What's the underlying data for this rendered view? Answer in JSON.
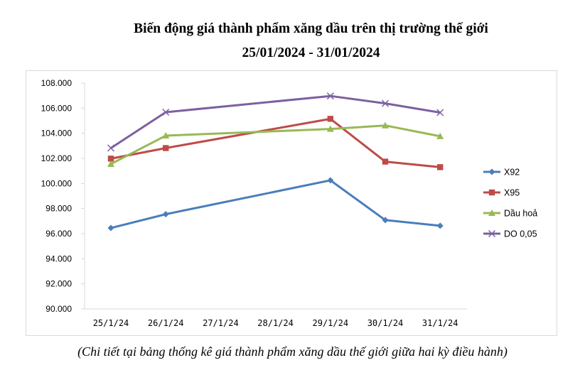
{
  "chart_data": {
    "type": "line",
    "title": "Biến động giá thành phẩm xăng dầu trên thị trường thế giới",
    "subtitle": "25/01/2024 - 31/01/2024",
    "caption": "(Chi tiết tại bảng thống kê giá thành phẩm xăng dầu thế giới giữa hai kỳ điều hành)",
    "categories": [
      "25/1/24",
      "26/1/24",
      "27/1/24",
      "28/1/24",
      "29/1/24",
      "30/1/24",
      "31/1/24"
    ],
    "ylim": [
      90000,
      108000
    ],
    "y_ticks": [
      {
        "value": 90000,
        "label": "90.000"
      },
      {
        "value": 92000,
        "label": "92.000"
      },
      {
        "value": 94000,
        "label": "94.000"
      },
      {
        "value": 96000,
        "label": "96.000"
      },
      {
        "value": 98000,
        "label": "98.000"
      },
      {
        "value": 100000,
        "label": "100.000"
      },
      {
        "value": 102000,
        "label": "102.000"
      },
      {
        "value": 104000,
        "label": "104.000"
      },
      {
        "value": 106000,
        "label": "106.000"
      },
      {
        "value": 108000,
        "label": "108.000"
      }
    ],
    "grid": false,
    "legend_position": "right",
    "series": [
      {
        "name": "X92",
        "color": "#4a7ebb",
        "marker": "diamond",
        "values": [
          96450,
          97550,
          null,
          null,
          100250,
          97080,
          96630
        ]
      },
      {
        "name": "X95",
        "color": "#be4b48",
        "marker": "square",
        "values": [
          101980,
          102820,
          null,
          null,
          105150,
          101740,
          101300
        ]
      },
      {
        "name": "Dầu hoả",
        "color": "#98b954",
        "marker": "triangle",
        "values": [
          101550,
          103810,
          null,
          null,
          104340,
          104620,
          103760
        ]
      },
      {
        "name": "DO 0,05",
        "color": "#7d60a0",
        "marker": "cross",
        "values": [
          102820,
          105680,
          null,
          null,
          106970,
          106380,
          105650
        ]
      }
    ]
  }
}
